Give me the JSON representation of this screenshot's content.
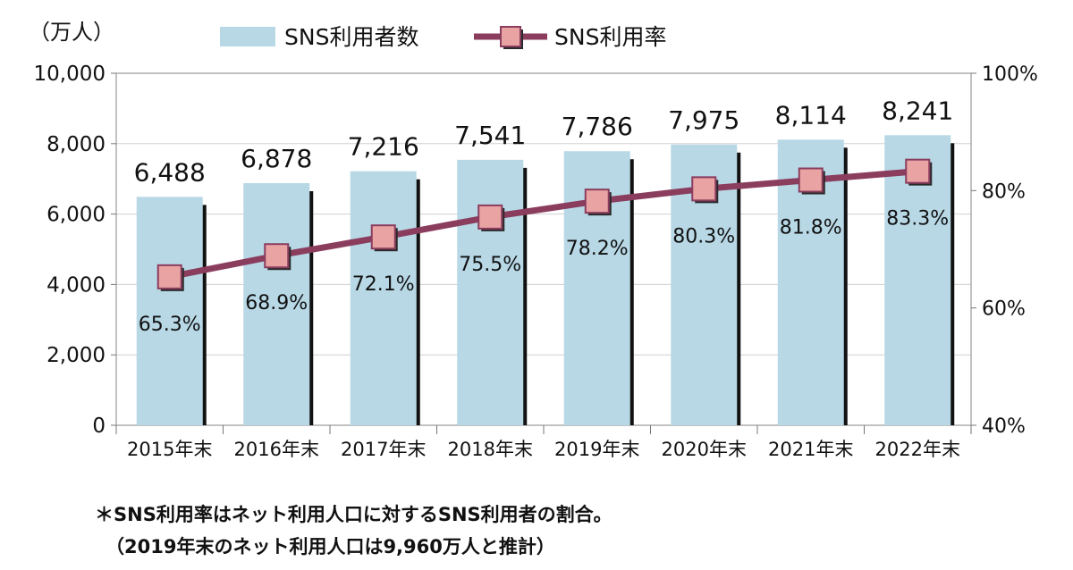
{
  "chart_data": {
    "type": "bar",
    "categories": [
      "2015年末",
      "2016年末",
      "2017年末",
      "2018年末",
      "2019年末",
      "2020年末",
      "2021年末",
      "2022年末"
    ],
    "series": [
      {
        "name": "SNS利用者数",
        "type": "bar",
        "axis": "left",
        "values": [
          6488,
          6878,
          7216,
          7541,
          7786,
          7975,
          8114,
          8241
        ],
        "labels": [
          "6,488",
          "6,878",
          "7,216",
          "7,541",
          "7,786",
          "7,975",
          "8,114",
          "8,241"
        ],
        "color": "#b8d8e6"
      },
      {
        "name": "SNS利用率",
        "type": "line",
        "axis": "right",
        "values": [
          65.3,
          68.9,
          72.1,
          75.5,
          78.2,
          80.3,
          81.8,
          83.3
        ],
        "labels": [
          "65.3%",
          "68.9%",
          "72.1%",
          "75.5%",
          "78.2%",
          "80.3%",
          "81.8%",
          "83.3%"
        ],
        "color": "#8b3d5e",
        "marker_color": "#e9a3a3"
      }
    ],
    "left_unit": "（万人）",
    "ylim": [
      0,
      10000
    ],
    "yticks": [
      "0",
      "2,000",
      "4,000",
      "6,000",
      "8,000",
      "10,000"
    ],
    "y2lim": [
      40,
      100
    ],
    "y2ticks": [
      "40%",
      "60%",
      "80%",
      "100%"
    ],
    "legend": "top",
    "grid": true
  },
  "notes": {
    "line1": "＊SNS利用率はネット利用人口に対するSNS利用者の割合。",
    "line2": "（2019年末のネット利用人口は9,960万人と推計）"
  }
}
